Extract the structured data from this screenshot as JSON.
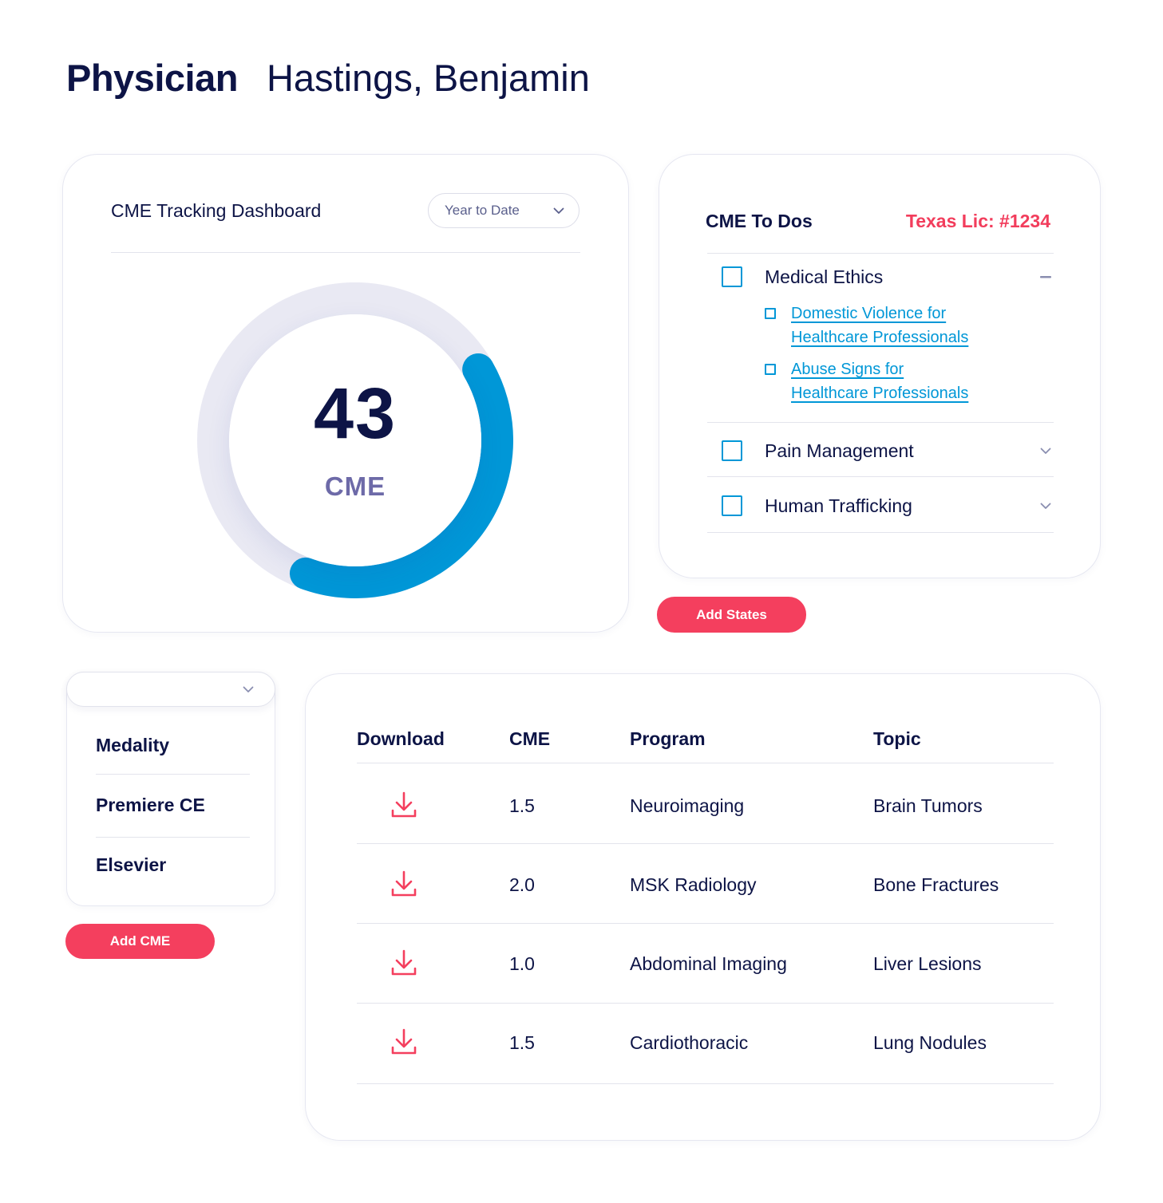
{
  "header": {
    "role": "Physician",
    "name": "Hastings, Benjamin"
  },
  "dashboard": {
    "title": "CME Tracking Dashboard",
    "period": "Year to Date",
    "total": "43",
    "unit": "CME",
    "progress_fraction": 0.39,
    "colors": {
      "progress": "#0097d7",
      "track": "#e9e9f3"
    }
  },
  "todos": {
    "title": "CME To Dos",
    "license": "Texas Lic: #1234",
    "items": [
      {
        "label": "Medical Ethics",
        "expanded": true,
        "subitems": [
          {
            "line1": "Domestic Violence for",
            "line2": "Healthcare Professionals"
          },
          {
            "line1": "Abuse Signs for",
            "line2": "Healthcare Professionals"
          }
        ]
      },
      {
        "label": "Pain Management",
        "expanded": false
      },
      {
        "label": "Human Trafficking",
        "expanded": false
      }
    ],
    "add_button": "Add States"
  },
  "providers": {
    "items": [
      "Medality",
      "Premiere CE",
      "Elsevier"
    ],
    "add_button": "Add CME"
  },
  "table": {
    "headers": [
      "Download",
      "CME",
      "Program",
      "Topic"
    ],
    "rows": [
      {
        "cme": "1.5",
        "program": "Neuroimaging",
        "topic": "Brain Tumors"
      },
      {
        "cme": "2.0",
        "program": "MSK Radiology",
        "topic": "Bone Fractures"
      },
      {
        "cme": "1.0",
        "program": "Abdominal Imaging",
        "topic": "Liver Lesions"
      },
      {
        "cme": "1.5",
        "program": "Cardiothoracic",
        "topic": "Lung Nodules"
      }
    ]
  },
  "colors": {
    "accent": "#f43f5e",
    "navy": "#0d1446",
    "link": "#0097d7",
    "license": "#f23d5c"
  }
}
